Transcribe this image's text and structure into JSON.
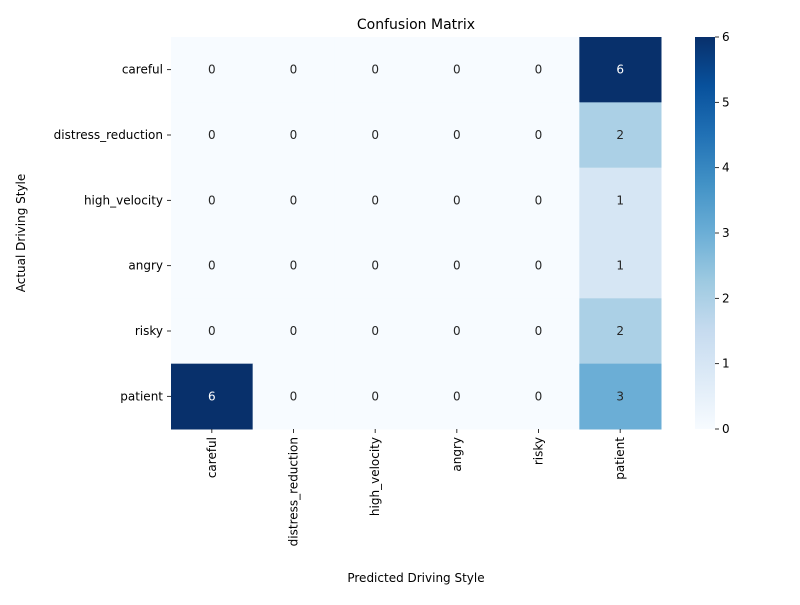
{
  "chart_data": {
    "type": "heatmap",
    "title": "Confusion Matrix",
    "xlabel": "Predicted Driving Style",
    "ylabel": "Actual Driving Style",
    "x_categories": [
      "careful",
      "distress_reduction",
      "high_velocity",
      "angry",
      "risky",
      "patient"
    ],
    "y_categories": [
      "careful",
      "distress_reduction",
      "high_velocity",
      "angry",
      "risky",
      "patient"
    ],
    "values": [
      [
        0,
        0,
        0,
        0,
        0,
        6
      ],
      [
        0,
        0,
        0,
        0,
        0,
        2
      ],
      [
        0,
        0,
        0,
        0,
        0,
        1
      ],
      [
        0,
        0,
        0,
        0,
        0,
        1
      ],
      [
        0,
        0,
        0,
        0,
        0,
        2
      ],
      [
        6,
        0,
        0,
        0,
        0,
        3
      ]
    ],
    "colorbar": {
      "colormap": "Blues",
      "range": [
        0,
        6
      ],
      "ticks": [
        0,
        1,
        2,
        3,
        4,
        5,
        6
      ]
    },
    "annotations_shown": true,
    "grid": false,
    "legend": "colorbar-right"
  }
}
